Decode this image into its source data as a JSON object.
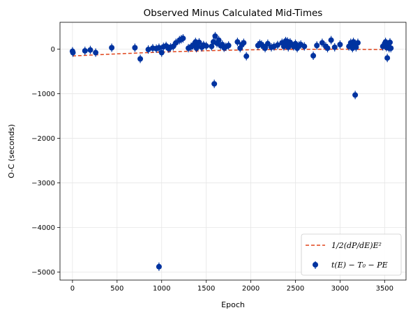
{
  "chart_data": {
    "type": "scatter",
    "title": "Observed Minus Calculated Mid-Times",
    "xlabel": "Epoch",
    "ylabel": "O-C (seconds)",
    "xlim": [
      -140,
      3740
    ],
    "ylim": [
      -5180,
      600
    ],
    "xticks": [
      0,
      500,
      1000,
      1500,
      2000,
      2500,
      3000,
      3500
    ],
    "yticks": [
      0,
      -1000,
      -2000,
      -3000,
      -4000,
      -5000
    ],
    "xtick_labels": [
      "0",
      "500",
      "1000",
      "1500",
      "2000",
      "2500",
      "3000",
      "3500"
    ],
    "ytick_labels": [
      "0",
      "−1000",
      "−2000",
      "−3000",
      "−4000",
      "−5000"
    ],
    "grid": true,
    "legend_position": "lower right",
    "colors": {
      "points": "#0033a0",
      "fit": "#e0441a"
    },
    "series": [
      {
        "name": "t(E) − T₀ − PE",
        "kind": "points",
        "x": [
          0,
          5,
          140,
          200,
          260,
          440,
          700,
          760,
          850,
          900,
          940,
          970,
          1000,
          1020,
          1050,
          1080,
          1100,
          1130,
          1160,
          1200,
          1220,
          1240,
          1300,
          1330,
          1350,
          1370,
          1380,
          1390,
          1400,
          1420,
          1450,
          1470,
          1500,
          1560,
          1580,
          1600,
          1620,
          1640,
          1660,
          1680,
          1700,
          1720,
          1750,
          1850,
          1880,
          1900,
          1920,
          1950,
          2080,
          2100,
          2120,
          2140,
          2160,
          2190,
          2230,
          2260,
          2300,
          2350,
          2370,
          2390,
          2400,
          2410,
          2420,
          2440,
          2460,
          2480,
          2500,
          2520,
          2540,
          2560,
          2600,
          2700,
          2740,
          2800,
          2840,
          2860,
          2900,
          2940,
          3000,
          3100,
          3120,
          3140,
          3150,
          3160,
          3170,
          3180,
          3200,
          3480,
          3500,
          3510,
          3520,
          3530,
          3540,
          3550,
          3560,
          3570,
          1590,
          3170,
          970
        ],
        "y": [
          -50,
          -80,
          -40,
          -20,
          -80,
          30,
          30,
          -220,
          -10,
          20,
          10,
          30,
          -80,
          50,
          70,
          10,
          40,
          60,
          140,
          200,
          220,
          240,
          20,
          50,
          80,
          120,
          160,
          20,
          80,
          150,
          40,
          90,
          70,
          60,
          160,
          290,
          130,
          200,
          80,
          100,
          30,
          50,
          80,
          160,
          20,
          100,
          140,
          -160,
          80,
          120,
          100,
          60,
          20,
          120,
          40,
          60,
          90,
          140,
          60,
          180,
          100,
          170,
          40,
          150,
          100,
          60,
          120,
          20,
          80,
          100,
          60,
          -150,
          80,
          140,
          60,
          20,
          200,
          40,
          100,
          60,
          140,
          20,
          160,
          80,
          120,
          40,
          140,
          60,
          120,
          160,
          40,
          -200,
          100,
          20,
          150,
          20,
          -780,
          -1030,
          -4880
        ]
      },
      {
        "name": "1/2(dP/dE)E²",
        "kind": "fit",
        "x": [
          0,
          500,
          1000,
          1500,
          2000,
          2500,
          3000,
          3500,
          3560
        ],
        "y": [
          -155,
          -108,
          -67,
          -38,
          -17,
          -6,
          -3,
          -12,
          -14
        ]
      }
    ]
  }
}
